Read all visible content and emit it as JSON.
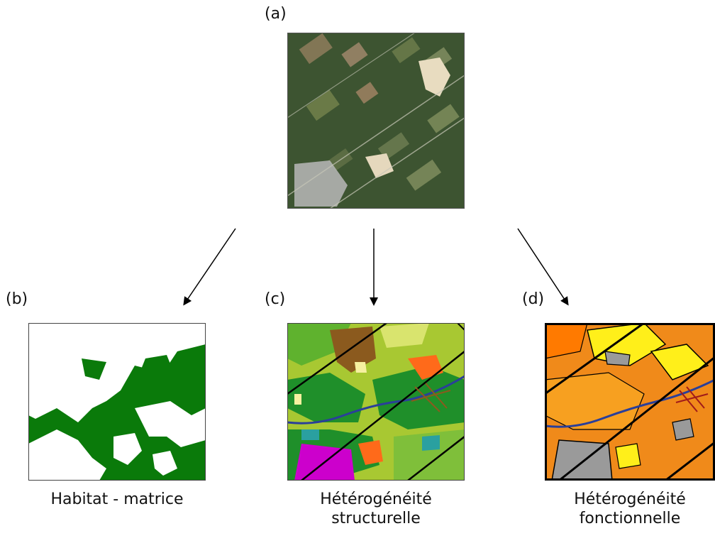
{
  "panels": {
    "a": {
      "label": "(a)"
    },
    "b": {
      "label": "(b)",
      "caption": "Habitat - matrice"
    },
    "c": {
      "label": "(c)",
      "caption_line1": "Hétérogénéité",
      "caption_line2": "structurelle"
    },
    "d": {
      "label": "(d)",
      "caption_line1": "Hétérogénéité",
      "caption_line2": "fonctionnelle"
    }
  },
  "colors": {
    "habitat_green": "#0a7a0a",
    "matrix_white": "#ffffff",
    "river_blue": "#2a3f9a",
    "urban_magenta": "#cc00cc",
    "gray_urban": "#9a9a9a"
  }
}
